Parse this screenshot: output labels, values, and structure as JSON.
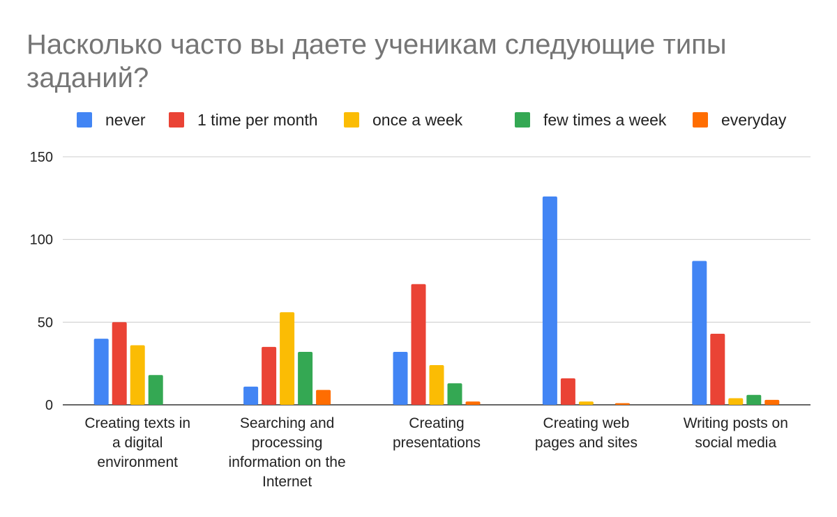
{
  "chart_data": {
    "type": "bar",
    "title": "Насколько часто вы даете ученикам следующие типы заданий?",
    "categories": [
      [
        "Creating texts in",
        "a digital",
        "environment"
      ],
      [
        "Searching and",
        "processing",
        "information on the",
        "Internet"
      ],
      [
        "Creating",
        "presentations"
      ],
      [
        "Creating web",
        "pages and sites"
      ],
      [
        "Writing posts on",
        "social media"
      ]
    ],
    "series": [
      {
        "name": "never",
        "color": "#4285f4",
        "values": [
          40,
          11,
          32,
          126,
          87
        ]
      },
      {
        "name": "1 time per month",
        "color": "#ea4335",
        "values": [
          50,
          35,
          73,
          16,
          43
        ]
      },
      {
        "name": "once a week",
        "color": "#fbbc04",
        "values": [
          36,
          56,
          24,
          2,
          4
        ]
      },
      {
        "name": "few times a week",
        "color": "#34a853",
        "values": [
          18,
          32,
          13,
          0,
          6
        ]
      },
      {
        "name": "everyday",
        "color": "#ff6d01",
        "values": [
          0,
          9,
          2,
          1,
          3
        ]
      }
    ],
    "y_ticks": [
      "0",
      "50",
      "100",
      "150"
    ],
    "ylim": [
      0,
      150
    ],
    "xlabel": "",
    "ylabel": "",
    "grid": true,
    "legend_position": "top"
  }
}
